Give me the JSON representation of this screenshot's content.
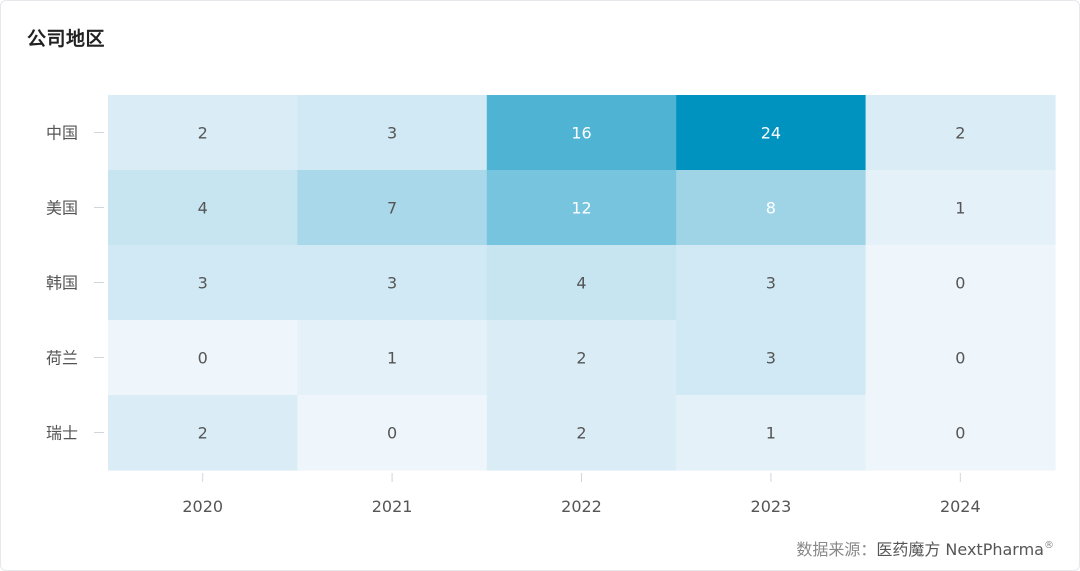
{
  "title": "公司地区",
  "source": {
    "prefix": "数据来源：",
    "brand": "医药魔方 NextPharma",
    "mark": "®"
  },
  "colors": {
    "scale": [
      "#eef5fb",
      "#0093c0"
    ],
    "text_dark": "#555555",
    "text_light": "#ffffff",
    "axis_text": "#555555",
    "tick": "#cfd6dc"
  },
  "chart_data": {
    "type": "heatmap",
    "title": "公司地区",
    "x": [
      "2020",
      "2021",
      "2022",
      "2023",
      "2024"
    ],
    "y": [
      "中国",
      "美国",
      "韩国",
      "荷兰",
      "瑞士"
    ],
    "values": [
      [
        2,
        3,
        16,
        24,
        2
      ],
      [
        4,
        7,
        12,
        8,
        1
      ],
      [
        3,
        3,
        4,
        3,
        0
      ],
      [
        0,
        1,
        2,
        3,
        0
      ],
      [
        2,
        0,
        2,
        1,
        0
      ]
    ],
    "value_range": [
      0,
      24
    ],
    "xlabel": "",
    "ylabel": "",
    "legend": "none",
    "grid": false
  }
}
